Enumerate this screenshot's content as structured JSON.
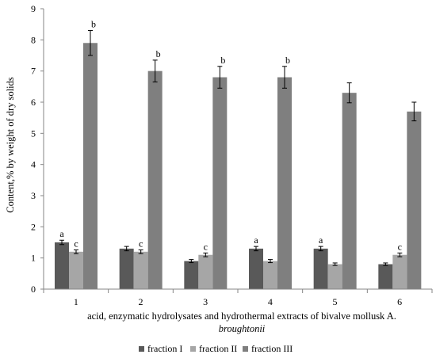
{
  "chart_data": {
    "type": "bar",
    "categories": [
      "1",
      "2",
      "3",
      "4",
      "5",
      "6"
    ],
    "series": [
      {
        "name": "fraction I",
        "values": [
          1.5,
          1.3,
          0.9,
          1.3,
          1.3,
          0.8
        ],
        "errors": [
          0.07,
          0.07,
          0.05,
          0.07,
          0.07,
          0.04
        ],
        "labels": [
          "a",
          "",
          "",
          "a",
          "a",
          ""
        ],
        "color": "#595959"
      },
      {
        "name": "fraction II",
        "values": [
          1.2,
          1.2,
          1.1,
          0.9,
          0.8,
          1.1
        ],
        "errors": [
          0.06,
          0.06,
          0.06,
          0.05,
          0.04,
          0.06
        ],
        "labels": [
          "c",
          "c",
          "c",
          "",
          "",
          "c"
        ],
        "color": "#a6a6a6"
      },
      {
        "name": "fraction III",
        "values": [
          7.9,
          7.0,
          6.8,
          6.8,
          6.3,
          5.7
        ],
        "errors": [
          0.4,
          0.35,
          0.35,
          0.35,
          0.32,
          0.3
        ],
        "labels": [
          "b",
          "b",
          "b",
          "b",
          "",
          ""
        ],
        "color": "#7f7f7f"
      }
    ],
    "ylabel": "Content,% by weight of dry solids",
    "xlabel_line1": "acid, enzymatic hydrolysates and hydrothermal extracts of bivalve mollusk A.",
    "xlabel_line2": "broughtonii",
    "yticks": [
      "0",
      "1",
      "2",
      "3",
      "4",
      "5",
      "6",
      "7",
      "8",
      "9"
    ],
    "ylim": [
      0,
      9
    ],
    "grid": false,
    "legend_position": "bottom"
  }
}
